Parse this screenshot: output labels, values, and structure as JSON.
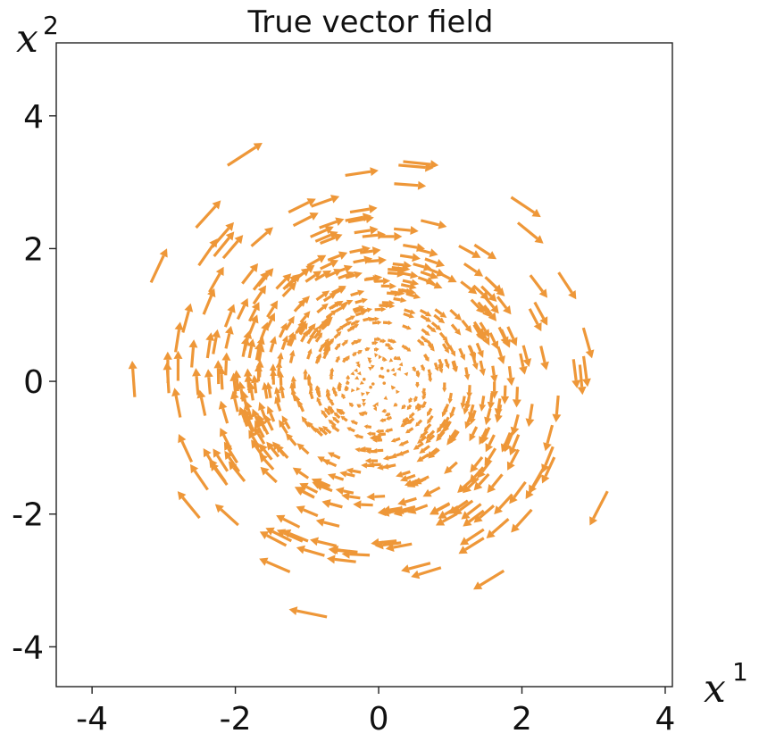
{
  "chart_data": {
    "type": "vector_field",
    "title": "True vector field",
    "xlabel": "x",
    "xlabel_sup": "1",
    "ylabel": "x",
    "ylabel_sup": "2",
    "xlim": [
      -4.5,
      4.1
    ],
    "ylim": [
      -4.6,
      5.1
    ],
    "xticks": [
      -4,
      -2,
      0,
      2,
      4
    ],
    "yticks": [
      -4,
      -2,
      0,
      2,
      4
    ],
    "xtick_labels": [
      "-4",
      "-2",
      "0",
      "2",
      "4"
    ],
    "ytick_labels": [
      "-4",
      "-2",
      "0",
      "2",
      "4"
    ],
    "field_rule": "rotation: at (x1, x2) the vector is (x2, -x1)",
    "sample_count": 620,
    "sample_radius_max": 4.9,
    "arrow_color": "#ee9738",
    "frame_color": "#222222"
  }
}
